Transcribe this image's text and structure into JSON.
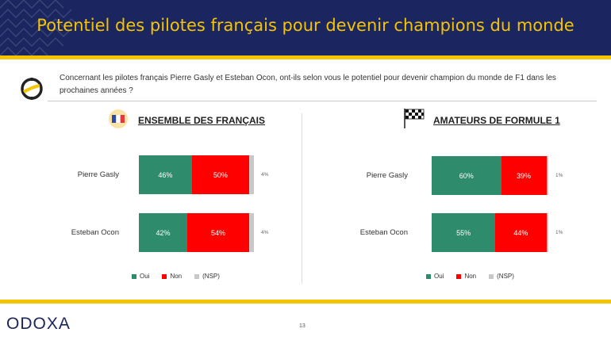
{
  "header": {
    "title": "Potentiel des pilotes français pour devenir champions du monde"
  },
  "question": {
    "text": "Concernant les pilotes français Pierre Gasly et Esteban Ocon, ont-ils selon vous le potentiel pour devenir champion du monde de F1 dans les prochaines années ?"
  },
  "colors": {
    "navy": "#1b2560",
    "gold": "#f5c400",
    "oui": "#2e8b6c",
    "non": "#ff0000",
    "nsp": "#c8c8c8"
  },
  "chart_data": [
    {
      "type": "bar",
      "stacked": true,
      "orientation": "horizontal",
      "title": "ENSEMBLE DES FRANÇAIS",
      "icon": "french-flag-icon",
      "categories": [
        "Pierre Gasly",
        "Esteban Ocon"
      ],
      "series": [
        {
          "name": "Oui",
          "values": [
            46,
            42
          ],
          "labels": [
            "46%",
            "42%"
          ],
          "color": "#2e8b6c"
        },
        {
          "name": "Non",
          "values": [
            50,
            54
          ],
          "labels": [
            "50%",
            "54%"
          ],
          "color": "#ff0000"
        },
        {
          "name": "(NSP)",
          "values": [
            4,
            4
          ],
          "labels": [
            "4%",
            "4%"
          ],
          "color": "#c8c8c8"
        }
      ],
      "xlim": [
        0,
        100
      ],
      "legend": "bottom"
    },
    {
      "type": "bar",
      "stacked": true,
      "orientation": "horizontal",
      "title": "AMATEURS DE FORMULE 1",
      "icon": "checkered-flag-icon",
      "categories": [
        "Pierre Gasly",
        "Esteban Ocon"
      ],
      "series": [
        {
          "name": "Oui",
          "values": [
            60,
            55
          ],
          "labels": [
            "60%",
            "55%"
          ],
          "color": "#2e8b6c"
        },
        {
          "name": "Non",
          "values": [
            39,
            44
          ],
          "labels": [
            "39%",
            "44%"
          ],
          "color": "#ff0000"
        },
        {
          "name": "(NSP)",
          "values": [
            1,
            1
          ],
          "labels": [
            "1%",
            "1%"
          ],
          "color": "#c8c8c8"
        }
      ],
      "xlim": [
        0,
        100
      ],
      "legend": "bottom"
    }
  ],
  "footer": {
    "logo_text": "ODOXA",
    "page_number": "13"
  }
}
